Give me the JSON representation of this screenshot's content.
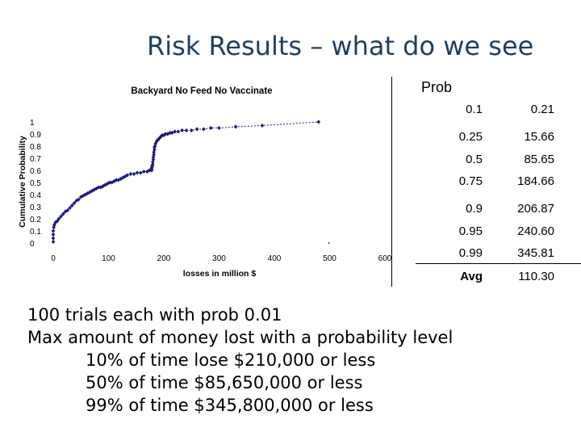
{
  "slide": {
    "title": "Risk Results – what do we see"
  },
  "chart_data": {
    "type": "scatter",
    "title": "Backyard No Feed No Vaccinate",
    "xlabel": "losses in million $",
    "ylabel": "Cumulative Probability",
    "xlim": [
      0,
      600
    ],
    "ylim": [
      0,
      1
    ],
    "x_ticks": [
      "0",
      "100",
      "200",
      "300",
      "400",
      "500",
      "600"
    ],
    "y_ticks": [
      "0",
      "0.1",
      "0.2",
      "0.3",
      "0.4",
      "0.5",
      "0.6",
      "0.7",
      "0.8",
      "0.9",
      "1"
    ],
    "grid": false,
    "marker_color": "#1a1a7a",
    "series": [
      {
        "x": [
          0,
          0,
          0,
          0,
          1,
          2,
          4,
          7,
          10,
          14,
          18,
          22,
          26,
          30,
          34,
          38,
          42,
          46,
          50,
          54,
          58,
          62,
          66,
          70,
          74,
          78,
          82,
          86,
          90,
          94,
          98,
          102,
          106,
          110,
          114,
          118,
          122,
          126,
          130,
          134,
          140,
          146,
          152,
          158,
          164,
          170,
          174,
          178,
          178,
          178,
          179,
          179,
          180,
          180,
          181,
          181,
          182,
          182,
          183,
          183,
          184,
          185,
          187,
          189,
          191,
          193,
          195,
          197,
          200,
          203,
          207,
          211,
          215,
          220,
          226,
          233,
          241,
          250,
          260,
          272,
          285,
          300,
          330,
          378,
          480
        ],
        "y": [
          0.01,
          0.04,
          0.07,
          0.1,
          0.13,
          0.15,
          0.17,
          0.18,
          0.2,
          0.22,
          0.24,
          0.26,
          0.27,
          0.29,
          0.31,
          0.33,
          0.35,
          0.36,
          0.38,
          0.39,
          0.4,
          0.41,
          0.42,
          0.43,
          0.44,
          0.45,
          0.46,
          0.46,
          0.47,
          0.48,
          0.49,
          0.5,
          0.5,
          0.51,
          0.52,
          0.52,
          0.53,
          0.54,
          0.55,
          0.56,
          0.57,
          0.57,
          0.58,
          0.58,
          0.59,
          0.59,
          0.6,
          0.6,
          0.61,
          0.62,
          0.63,
          0.64,
          0.65,
          0.67,
          0.69,
          0.71,
          0.73,
          0.75,
          0.77,
          0.79,
          0.8,
          0.82,
          0.84,
          0.85,
          0.86,
          0.87,
          0.88,
          0.89,
          0.89,
          0.9,
          0.9,
          0.91,
          0.91,
          0.92,
          0.92,
          0.93,
          0.93,
          0.93,
          0.94,
          0.94,
          0.95,
          0.95,
          0.96,
          0.97,
          1.0
        ]
      }
    ]
  },
  "table": {
    "header": "Prob",
    "rows": [
      {
        "prob": "0.1",
        "value": "0.21"
      },
      {
        "prob": "0.25",
        "value": "15.66"
      },
      {
        "prob": "0.5",
        "value": "85.65"
      },
      {
        "prob": "0.75",
        "value": "184.66"
      },
      {
        "prob": "0.9",
        "value": "206.87"
      },
      {
        "prob": "0.95",
        "value": "240.60"
      },
      {
        "prob": "0.99",
        "value": "345.81"
      }
    ],
    "avg_label": "Avg",
    "avg_value": "110.30"
  },
  "notes": {
    "line1": "100 trials each with prob 0.01",
    "line2": "Max amount of money lost with a probability level",
    "line3": "10% of time lose $210,000 or less",
    "line4": "50% of time $85,650,000 or less",
    "line5": "99% of time $345,800,000 or less"
  }
}
